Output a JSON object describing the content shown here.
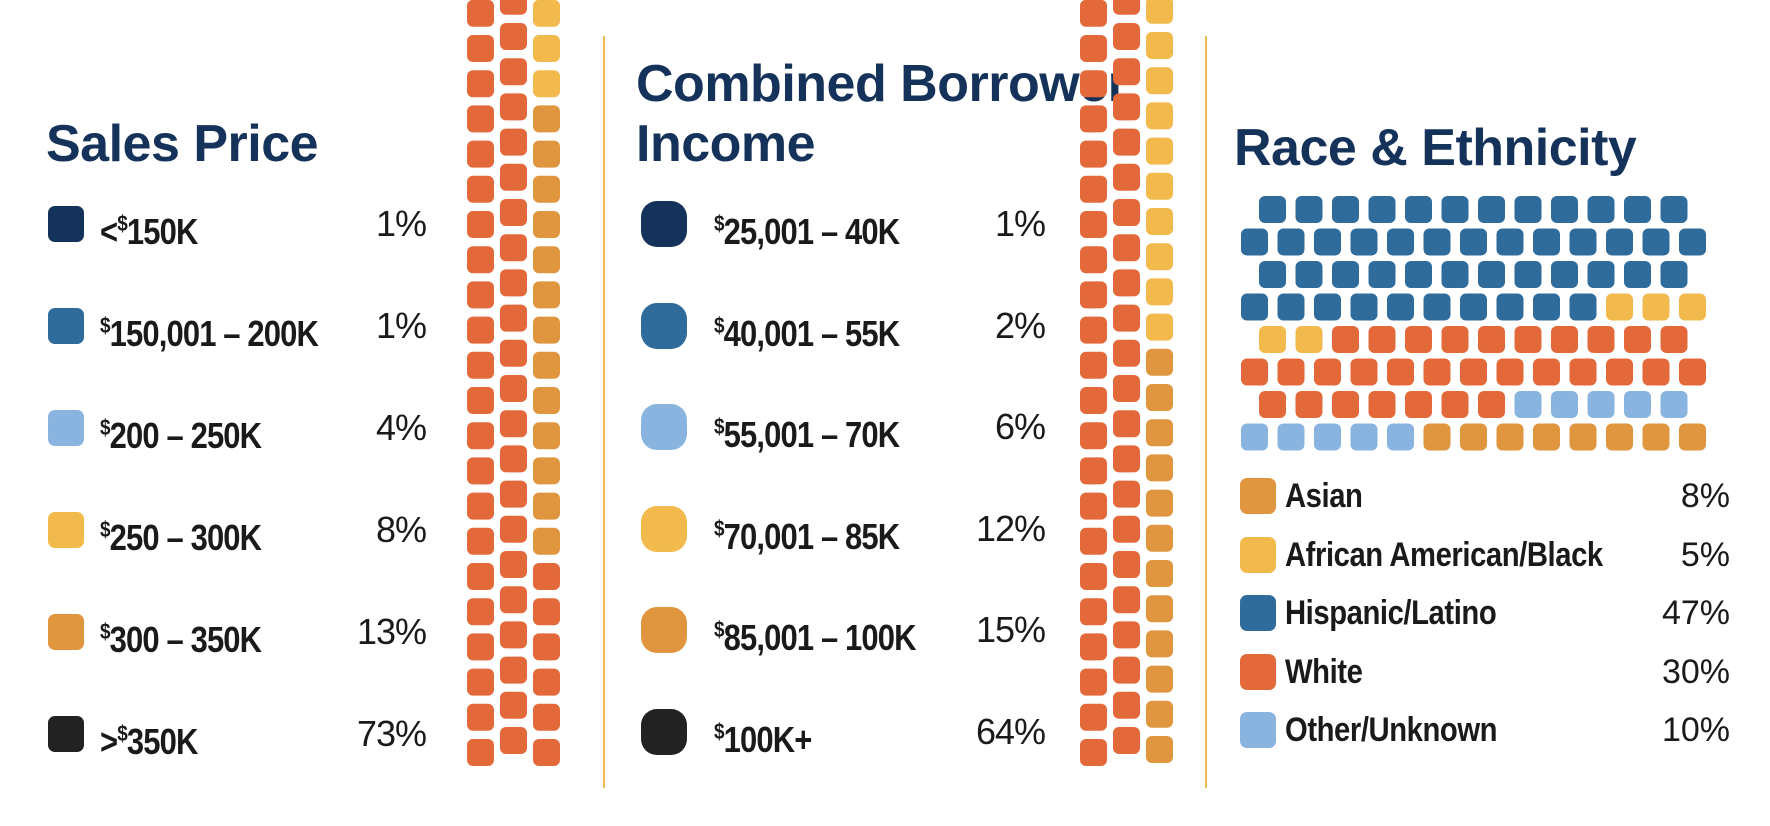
{
  "colors": {
    "navy": "#15335a",
    "blue": "#2f6b9b",
    "light_blue": "#8ab4e0",
    "yellow": "#f2b94c",
    "gold": "#e0963e",
    "orange": "#e4693a",
    "black": "#222222",
    "divider": "#f2b94c"
  },
  "chart_data": [
    {
      "type": "waffle",
      "title": "Sales Price",
      "categories": [
        {
          "label_prefix": "<",
          "label_dollar": "$",
          "label_rest": "150K",
          "value": 1,
          "display": "1%",
          "color": "#15335a"
        },
        {
          "label_prefix": "",
          "label_dollar": "$",
          "label_rest": "150,001 – 200K",
          "value": 1,
          "display": "1%",
          "color": "#2f6b9b"
        },
        {
          "label_prefix": "",
          "label_dollar": "$",
          "label_rest": "200 – 250K",
          "value": 4,
          "display": "4%",
          "color": "#8ab4e0"
        },
        {
          "label_prefix": "",
          "label_dollar": "$",
          "label_rest": "250 – 300K",
          "value": 8,
          "display": "8%",
          "color": "#f2b94c"
        },
        {
          "label_prefix": "",
          "label_dollar": "$",
          "label_rest": "300 – 350K",
          "value": 13,
          "display": "13%",
          "color": "#e0963e"
        },
        {
          "label_prefix": ">",
          "label_dollar": "$",
          "label_rest": "350K",
          "value": 73,
          "display": "73%",
          "color": "#222222"
        }
      ]
    },
    {
      "type": "waffle",
      "title": "Combined Borrower Income",
      "categories": [
        {
          "label_prefix": "",
          "label_dollar": "$",
          "label_rest": "25,001 – 40K",
          "value": 1,
          "display": "1%",
          "color": "#15335a"
        },
        {
          "label_prefix": "",
          "label_dollar": "$",
          "label_rest": "40,001 – 55K",
          "value": 2,
          "display": "2%",
          "color": "#2f6b9b"
        },
        {
          "label_prefix": "",
          "label_dollar": "$",
          "label_rest": "55,001 – 70K",
          "value": 6,
          "display": "6%",
          "color": "#8ab4e0"
        },
        {
          "label_prefix": "",
          "label_dollar": "$",
          "label_rest": "70,001 – 85K",
          "value": 12,
          "display": "12%",
          "color": "#f2b94c"
        },
        {
          "label_prefix": "",
          "label_dollar": "$",
          "label_rest": "85,001 – 100K",
          "value": 15,
          "display": "15%",
          "color": "#e0963e"
        },
        {
          "label_prefix": "",
          "label_dollar": "$",
          "label_rest": "100K+",
          "value": 64,
          "display": "64%",
          "color": "#222222"
        }
      ]
    },
    {
      "type": "waffle",
      "title": "Race & Ethnicity",
      "categories": [
        {
          "label": "Asian",
          "value": 8,
          "display": "8%",
          "color": "#e0963e"
        },
        {
          "label": "African American/Black",
          "value": 5,
          "display": "5%",
          "color": "#f2b94c"
        },
        {
          "label": "Hispanic/Latino",
          "value": 47,
          "display": "47%",
          "color": "#2f6b9b"
        },
        {
          "label": "White",
          "value": 30,
          "display": "30%",
          "color": "#e4693a"
        },
        {
          "label": "Other/Unknown",
          "value": 10,
          "display": "10%",
          "color": "#8ab4e0"
        }
      ]
    }
  ]
}
